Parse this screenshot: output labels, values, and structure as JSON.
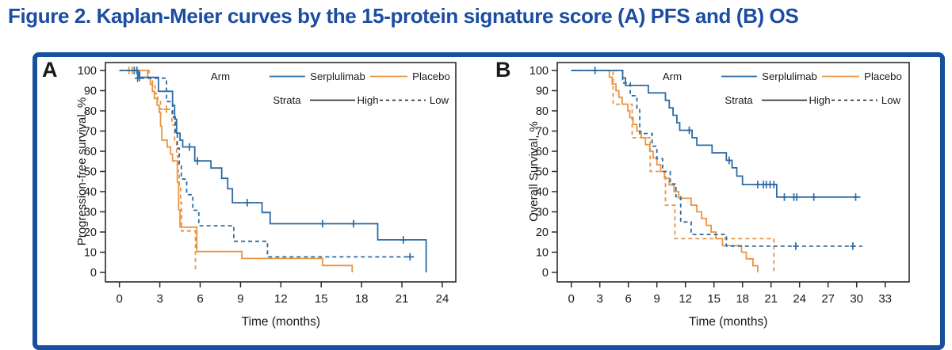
{
  "title": "Figure 2. Kaplan-Meier curves by the 15-protein signature score (A) PFS and (B) OS",
  "colors": {
    "serplulimab": "#2d6ba3",
    "placebo": "#ea9440",
    "strata": "#1a1a1a",
    "title": "#1b4da0",
    "border": "#17509c",
    "axis": "#2b2b2b"
  },
  "legend": {
    "arm_label": "Arm",
    "strata_label": "Strata",
    "arms": [
      {
        "label": "Serplulimab",
        "color_key": "serplulimab"
      },
      {
        "label": "Placebo",
        "color_key": "placebo"
      }
    ],
    "strata": [
      {
        "label": "High",
        "dashed": false
      },
      {
        "label": "Low",
        "dashed": true
      }
    ]
  },
  "chart_data": [
    {
      "type": "line",
      "km_style": "step",
      "panel_label": "A",
      "ylabel": "Progression-free survival, %",
      "xlabel": "Time (months)",
      "xlim": [
        0,
        24
      ],
      "ylim": [
        0,
        100
      ],
      "xticks": [
        0,
        3,
        6,
        9,
        12,
        15,
        18,
        21,
        24
      ],
      "yticks": [
        0,
        10,
        20,
        30,
        40,
        50,
        60,
        70,
        80,
        90,
        100
      ],
      "series": [
        {
          "name": "Placebo Low",
          "arm": "Placebo",
          "strata": "Low",
          "color_key": "placebo",
          "dashed": true,
          "points": [
            [
              0,
              100
            ],
            [
              2.2,
              96.2
            ],
            [
              2.45,
              92.3
            ],
            [
              2.65,
              88.5
            ],
            [
              2.85,
              84.6
            ],
            [
              3.05,
              80.8
            ],
            [
              3.9,
              73.1
            ],
            [
              4.1,
              65.4
            ],
            [
              4.25,
              57.7
            ],
            [
              4.35,
              50
            ],
            [
              4.45,
              42.3
            ],
            [
              4.55,
              34.6
            ],
            [
              4.62,
              20.5
            ],
            [
              5.65,
              0
            ]
          ],
          "end": 5.65,
          "censors": [
            [
              3.5,
              80.8
            ]
          ]
        },
        {
          "name": "Placebo High",
          "arm": "Placebo",
          "strata": "High",
          "color_key": "placebo",
          "dashed": false,
          "points": [
            [
              0,
              100
            ],
            [
              2.1,
              96.6
            ],
            [
              2.3,
              93.1
            ],
            [
              2.45,
              89.7
            ],
            [
              2.6,
              86.2
            ],
            [
              2.8,
              82.8
            ],
            [
              2.95,
              79.3
            ],
            [
              3.05,
              72.4
            ],
            [
              3.15,
              65.5
            ],
            [
              3.55,
              62.1
            ],
            [
              3.8,
              58.6
            ],
            [
              3.95,
              55.2
            ],
            [
              4.3,
              44.8
            ],
            [
              4.4,
              31
            ],
            [
              4.5,
              22.4
            ],
            [
              5.75,
              10.3
            ],
            [
              9.1,
              6.9
            ],
            [
              15.1,
              3.4
            ],
            [
              17.3,
              0
            ]
          ],
          "end": 17.3,
          "censors": [
            [
              0.7,
              100
            ],
            [
              0.95,
              100
            ]
          ]
        },
        {
          "name": "Serplulimab Low",
          "arm": "Serplulimab",
          "strata": "Low",
          "color_key": "serplulimab",
          "dashed": true,
          "points": [
            [
              0,
              100
            ],
            [
              1.5,
              96.2
            ],
            [
              3.5,
              84.6
            ],
            [
              3.95,
              76.9
            ],
            [
              4.15,
              69.2
            ],
            [
              4.3,
              61.5
            ],
            [
              4.45,
              53.8
            ],
            [
              4.6,
              46.2
            ],
            [
              5.0,
              38.5
            ],
            [
              5.45,
              30.8
            ],
            [
              5.9,
              23.1
            ],
            [
              8.5,
              15.4
            ],
            [
              11.0,
              7.7
            ]
          ],
          "end": 21.9,
          "censors": [
            [
              1.35,
              96.2
            ],
            [
              21.6,
              7.7
            ]
          ]
        },
        {
          "name": "Serplulimab High",
          "arm": "Serplulimab",
          "strata": "High",
          "color_key": "serplulimab",
          "dashed": false,
          "points": [
            [
              0,
              100
            ],
            [
              1.4,
              96.6
            ],
            [
              2.9,
              89.7
            ],
            [
              3.95,
              82.8
            ],
            [
              4.1,
              75.9
            ],
            [
              4.25,
              69
            ],
            [
              4.5,
              65.5
            ],
            [
              4.7,
              62.1
            ],
            [
              5.6,
              55.2
            ],
            [
              6.8,
              51.7
            ],
            [
              7.6,
              46.6
            ],
            [
              8.05,
              41.4
            ],
            [
              8.4,
              34.5
            ],
            [
              10.6,
              29.7
            ],
            [
              11.2,
              24.1
            ],
            [
              19.2,
              16.1
            ],
            [
              22.8,
              0
            ]
          ],
          "end": 22.8,
          "censors": [
            [
              1.1,
              100
            ],
            [
              1.3,
              100
            ],
            [
              1.5,
              96.6
            ],
            [
              5.2,
              62.1
            ],
            [
              5.8,
              55.2
            ],
            [
              9.5,
              34.5
            ],
            [
              15.1,
              24.1
            ],
            [
              17.4,
              24.1
            ],
            [
              21.1,
              16.1
            ]
          ]
        }
      ]
    },
    {
      "type": "line",
      "km_style": "step",
      "panel_label": "B",
      "ylabel": "Overall Survival, %",
      "xlabel": "Time (months)",
      "xlim": [
        0,
        33
      ],
      "ylim": [
        0,
        100
      ],
      "xticks": [
        0,
        3,
        6,
        9,
        12,
        15,
        18,
        21,
        24,
        27,
        30,
        33
      ],
      "yticks": [
        0,
        10,
        20,
        30,
        40,
        50,
        60,
        70,
        80,
        90,
        100
      ],
      "series": [
        {
          "name": "Placebo Low",
          "arm": "Placebo",
          "strata": "Low",
          "color_key": "placebo",
          "dashed": true,
          "points": [
            [
              0,
              100
            ],
            [
              4.4,
              83.3
            ],
            [
              6.4,
              66.7
            ],
            [
              8.3,
              50
            ],
            [
              9.9,
              33.3
            ],
            [
              10.9,
              16.7
            ],
            [
              21.3,
              0
            ]
          ],
          "end": 21.3,
          "censors": []
        },
        {
          "name": "Placebo High",
          "arm": "Placebo",
          "strata": "High",
          "color_key": "placebo",
          "dashed": false,
          "points": [
            [
              0,
              100
            ],
            [
              4.0,
              96.7
            ],
            [
              4.3,
              93.3
            ],
            [
              4.7,
              90
            ],
            [
              5.0,
              86.7
            ],
            [
              5.35,
              83.3
            ],
            [
              5.95,
              80
            ],
            [
              6.15,
              76.7
            ],
            [
              6.5,
              73.3
            ],
            [
              6.9,
              70
            ],
            [
              7.35,
              66.7
            ],
            [
              7.8,
              63.3
            ],
            [
              8.25,
              60
            ],
            [
              8.6,
              56.7
            ],
            [
              9.0,
              53.3
            ],
            [
              9.4,
              50
            ],
            [
              9.8,
              46.7
            ],
            [
              10.3,
              43.3
            ],
            [
              10.8,
              40
            ],
            [
              11.3,
              36.7
            ],
            [
              12.6,
              33.3
            ],
            [
              13.2,
              30
            ],
            [
              13.7,
              26.7
            ],
            [
              14.2,
              23.3
            ],
            [
              14.7,
              20
            ],
            [
              15.2,
              16.7
            ],
            [
              15.9,
              13.3
            ],
            [
              17.9,
              10
            ],
            [
              18.4,
              6.7
            ],
            [
              19.1,
              3.3
            ],
            [
              19.6,
              0
            ]
          ],
          "end": 19.6,
          "censors": []
        },
        {
          "name": "Serplulimab Low",
          "arm": "Serplulimab",
          "strata": "Low",
          "color_key": "serplulimab",
          "dashed": true,
          "points": [
            [
              0,
              100
            ],
            [
              5.4,
              93.8
            ],
            [
              6.2,
              87.5
            ],
            [
              6.9,
              81.3
            ],
            [
              7.2,
              68.8
            ],
            [
              8.5,
              62.5
            ],
            [
              9.0,
              56.3
            ],
            [
              9.6,
              50
            ],
            [
              10.4,
              43.8
            ],
            [
              11.0,
              37.5
            ],
            [
              11.5,
              25
            ],
            [
              12.6,
              18.8
            ],
            [
              16.3,
              13
            ]
          ],
          "end": 30.6,
          "censors": [
            [
              23.6,
              13
            ],
            [
              29.6,
              13
            ]
          ]
        },
        {
          "name": "Serplulimab High",
          "arm": "Serplulimab",
          "strata": "High",
          "color_key": "serplulimab",
          "dashed": false,
          "points": [
            [
              0,
              100
            ],
            [
              5.4,
              96.3
            ],
            [
              5.7,
              92.6
            ],
            [
              8.1,
              88.9
            ],
            [
              9.9,
              85.2
            ],
            [
              10.3,
              81.5
            ],
            [
              10.7,
              77.8
            ],
            [
              11.1,
              74.1
            ],
            [
              11.4,
              70.4
            ],
            [
              12.7,
              66.7
            ],
            [
              13.2,
              63
            ],
            [
              14.8,
              59.2
            ],
            [
              16.3,
              55.5
            ],
            [
              16.9,
              51.8
            ],
            [
              17.4,
              47.7
            ],
            [
              18.0,
              43.5
            ],
            [
              21.6,
              37.3
            ]
          ],
          "end": 30.4,
          "censors": [
            [
              2.5,
              100
            ],
            [
              12.4,
              70.4
            ],
            [
              16.6,
              55.5
            ],
            [
              19.6,
              43.5
            ],
            [
              20.2,
              43.5
            ],
            [
              20.5,
              43.5
            ],
            [
              20.9,
              43.5
            ],
            [
              21.3,
              43.5
            ],
            [
              22.4,
              37.3
            ],
            [
              23.4,
              37.3
            ],
            [
              23.7,
              37.3
            ],
            [
              25.5,
              37.3
            ],
            [
              29.9,
              37.3
            ]
          ]
        }
      ]
    }
  ]
}
